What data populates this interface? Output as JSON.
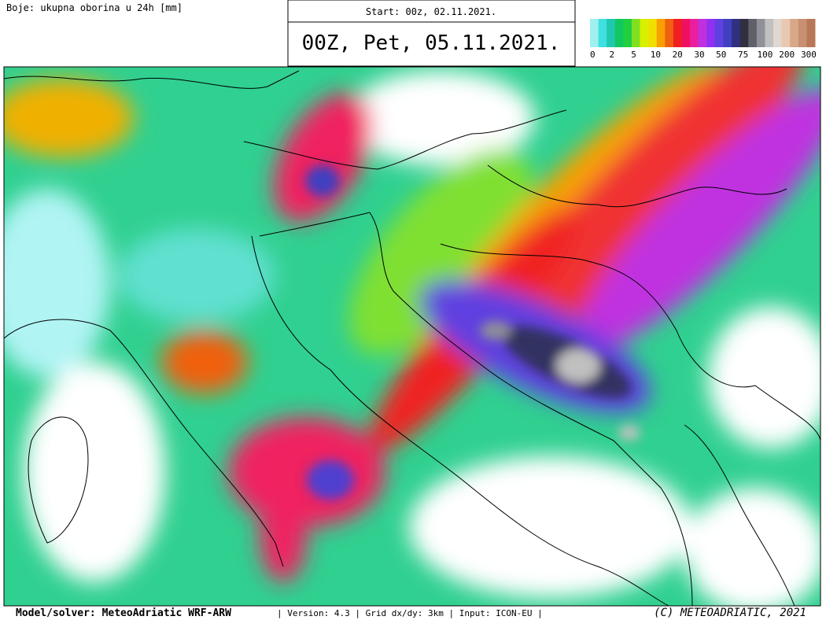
{
  "header": {
    "label": "Boje: ukupna oborina u 24h [mm]",
    "start": "Start: 00z, 02.11.2021.",
    "valid": "00Z, Pet, 05.11.2021."
  },
  "legend": {
    "ticks": [
      "0",
      "2",
      "5",
      "10",
      "20",
      "30",
      "50",
      "75",
      "100",
      "200",
      "300"
    ],
    "colors": [
      "#a0f0f0",
      "#40e0e0",
      "#20c8b0",
      "#10c860",
      "#20d040",
      "#80e020",
      "#d8f000",
      "#f0e000",
      "#f8a000",
      "#f06010",
      "#f02020",
      "#f01060",
      "#e820a0",
      "#c030e0",
      "#9030f0",
      "#6040e0",
      "#4040c0",
      "#303080",
      "#303040",
      "#606068",
      "#909098",
      "#c0c0c0",
      "#e0d8d0",
      "#e8c8b0",
      "#d8a888",
      "#c89070",
      "#b87858"
    ]
  },
  "footer": {
    "model": "Model/solver: MeteoAdriatic WRF-ARW",
    "info": "| Version: 4.3 | Grid dx/dy: 3km | Input: ICON-EU |",
    "copyright": "(C) METEOADRIATIC, 2021"
  }
}
